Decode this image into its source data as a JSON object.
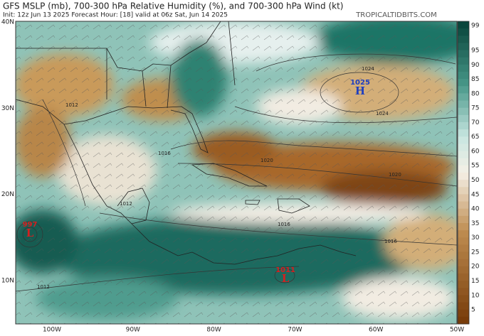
{
  "header": {
    "title": "GFS MSLP (mb), 700-300 hPa Relative Humidity (%), and 700-300 hPa Wind (kt)",
    "subtitle": "Init: 12z Jun 13 2025   Forecast Hour: [18]   valid at 06z Sat, Jun 14 2025",
    "credit": "TROPICALTIDBITS.COM"
  },
  "map": {
    "lat_labels": [
      "40N",
      "30N",
      "20N",
      "10N"
    ],
    "lon_labels": [
      "100W",
      "90W",
      "80W",
      "70W",
      "60W",
      "50W"
    ],
    "centers": [
      {
        "pressure": "1025",
        "symbol": "H"
      },
      {
        "pressure": "997",
        "symbol": "L"
      },
      {
        "pressure": "1011",
        "symbol": "L"
      }
    ],
    "isobar_labels": [
      "1024",
      "1024",
      "1012",
      "1016",
      "1020",
      "1020",
      "1012",
      "1016",
      "1016",
      "1012"
    ]
  },
  "colorbar": {
    "labels": [
      99,
      95,
      90,
      85,
      80,
      75,
      70,
      65,
      60,
      55,
      50,
      45,
      40,
      35,
      30,
      25,
      20,
      15,
      10,
      5
    ]
  }
}
